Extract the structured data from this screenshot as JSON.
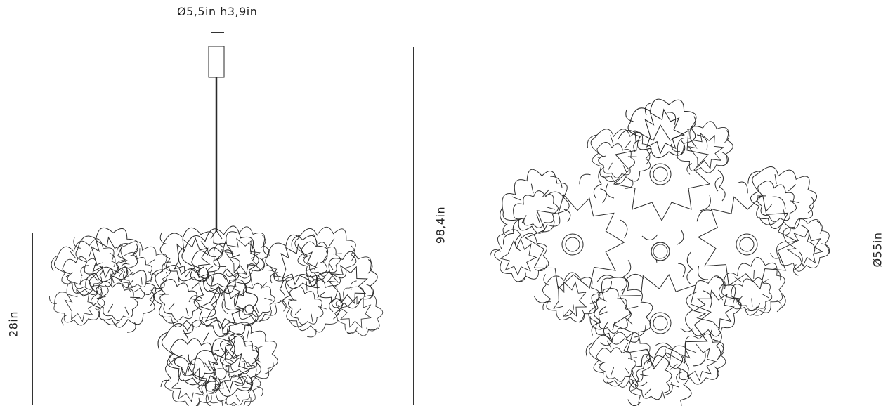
{
  "dimensions": {
    "canopy": "Ø5,5in h3,9in",
    "total_height": "98,4in",
    "body_height": "28in",
    "diameter": "Ø55in"
  },
  "colors": {
    "line": "#2a2a2a",
    "background": "#ffffff"
  }
}
